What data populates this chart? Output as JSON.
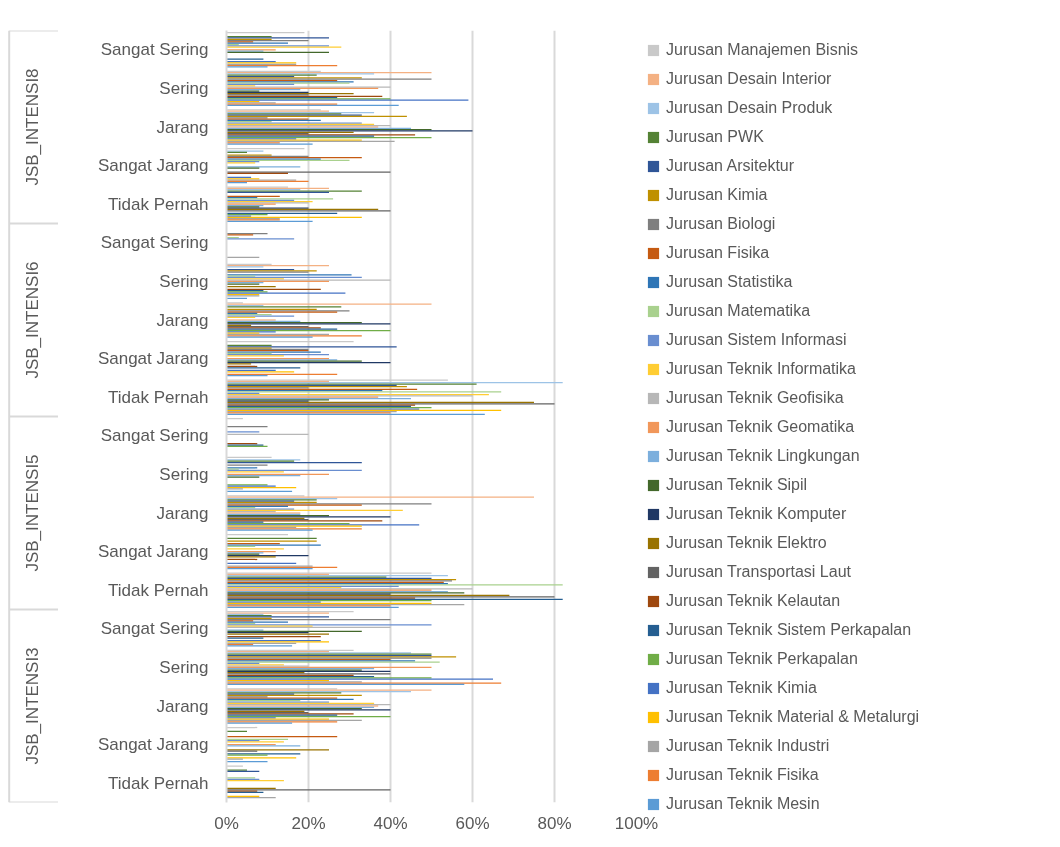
{
  "chart_data": {
    "type": "bar",
    "orientation": "horizontal",
    "legend": "right",
    "grid": "x",
    "categories": [
      "Sangat Sering",
      "Sering",
      "Jarang",
      "Sangat Jarang",
      "Tidak Pernah",
      "Sangat Sering",
      "Sering",
      "Jarang",
      "Sangat Jarang",
      "Tidak Pernah",
      "Sangat Sering",
      "Sering",
      "Jarang",
      "Sangat Jarang",
      "Tidak Pernah",
      "Sangat Sering",
      "Sering",
      "Jarang",
      "Sangat Jarang",
      "Tidak Pernah"
    ],
    "annotations": [
      "JSB_INTENSI8",
      "JSB_INTENSI6",
      "JSB_INTENSI5",
      "JSB_INTENSI3"
    ],
    "xlim": [
      0,
      100
    ],
    "xticks": [
      {
        "value": 0,
        "label": "0%"
      },
      {
        "value": 20,
        "label": "20%"
      },
      {
        "value": 40,
        "label": "40%"
      },
      {
        "value": 60,
        "label": "60%"
      },
      {
        "value": 80,
        "label": "80%"
      },
      {
        "value": 100,
        "label": "100%"
      }
    ],
    "series": [
      {
        "name": "Jurusan Manajemen Bisnis",
        "color": "#c9c9c9",
        "values": [
          19,
          23,
          23,
          19,
          15,
          0,
          11,
          4,
          31,
          54,
          4,
          11,
          19,
          15,
          50,
          31,
          31,
          27,
          7.5,
          4
        ]
      },
      {
        "name": "Jurusan Desain Interior",
        "color": "#f4b183",
        "values": [
          0,
          50,
          25,
          0,
          25,
          0,
          25,
          50,
          0,
          25,
          0,
          0,
          75,
          0,
          25,
          25,
          25,
          50,
          0,
          0
        ]
      },
      {
        "name": "Jurusan Desain Produk",
        "color": "#9dc3e6",
        "values": [
          0,
          36,
          36,
          9,
          18,
          0,
          9,
          9,
          0,
          82,
          0,
          18,
          27,
          0,
          54,
          9,
          45,
          45,
          0,
          0
        ]
      },
      {
        "name": "Jurusan PWK",
        "color": "#548235",
        "values": [
          11,
          22,
          28,
          5,
          33,
          0,
          0,
          28,
          11,
          61,
          0,
          16.5,
          22,
          22,
          39,
          11,
          50,
          28,
          5,
          5
        ]
      },
      {
        "name": "Jurusan Arsitektur",
        "color": "#2f5597",
        "values": [
          25,
          16.5,
          33,
          0,
          25,
          0,
          16.5,
          0,
          41.5,
          41.5,
          0,
          33,
          16.5,
          0,
          50,
          25,
          50,
          16.5,
          0,
          8
        ]
      },
      {
        "name": "Jurusan Kimia",
        "color": "#bf9000",
        "values": [
          11,
          33,
          44,
          11,
          0,
          0,
          22,
          22,
          11,
          44,
          0,
          0,
          22,
          22,
          56,
          11,
          56,
          33,
          0,
          0
        ]
      },
      {
        "name": "Jurusan Biologi",
        "color": "#7f7f7f",
        "values": [
          20,
          50,
          10,
          20,
          0,
          10,
          20,
          30,
          20,
          20,
          10,
          10,
          50,
          0,
          55,
          40,
          50,
          10,
          0,
          0
        ]
      },
      {
        "name": "Jurusan Fisika",
        "color": "#c55a11",
        "values": [
          6.5,
          27,
          20,
          33,
          13,
          6.5,
          0,
          27,
          20,
          46.5,
          0,
          0,
          33,
          13,
          53,
          6.5,
          40,
          27,
          27,
          0
        ]
      },
      {
        "name": "Jurusan Statistika",
        "color": "#2e75b6",
        "values": [
          15,
          31,
          23,
          23,
          7.5,
          0,
          30.5,
          7.5,
          23,
          38,
          0,
          7.5,
          15,
          23,
          54,
          15,
          46,
          31,
          0,
          0
        ]
      },
      {
        "name": "Jurusan Matematika",
        "color": "#a9d18e",
        "values": [
          3,
          30,
          11,
          30,
          26,
          3,
          7,
          11,
          11,
          67,
          0,
          3,
          7,
          7,
          82,
          7,
          52,
          18,
          15,
          7
        ]
      },
      {
        "name": "Jurusan Sistem Informasi",
        "color": "#698ed0",
        "values": [
          25,
          16.5,
          33,
          8,
          16.5,
          16.5,
          33,
          16.5,
          25,
          8,
          8,
          33,
          16.5,
          0,
          42,
          50,
          8,
          25,
          8,
          8
        ]
      },
      {
        "name": "Jurusan Teknik Informatika",
        "color": "#ffcd33",
        "values": [
          28,
          7,
          36,
          7,
          21,
          0,
          14,
          7,
          14,
          64,
          0,
          14,
          43,
          14,
          28,
          21,
          14,
          36,
          14,
          14
        ]
      },
      {
        "name": "Jurusan Teknik Geofisika",
        "color": "#b7b7b7",
        "values": [
          0,
          40,
          40,
          0,
          20,
          0,
          40,
          0,
          0,
          60,
          20,
          0,
          12,
          0,
          60,
          40,
          20,
          40,
          0,
          0
        ]
      },
      {
        "name": "Jurusan Teknik Geomatika",
        "color": "#f1975a",
        "values": [
          12,
          37,
          37,
          0,
          12,
          0,
          25,
          12,
          25,
          37,
          0,
          25,
          18,
          12,
          50,
          0,
          50,
          37,
          12,
          0
        ]
      },
      {
        "name": "Jurusan Teknik Lingkungan",
        "color": "#7cafdd",
        "values": [
          9,
          18,
          45,
          18,
          9,
          0,
          9,
          18,
          27,
          45,
          0,
          18,
          18,
          9,
          54,
          9,
          36,
          36,
          18,
          0
        ]
      },
      {
        "name": "Jurusan Teknik Sipil",
        "color": "#43682b",
        "values": [
          25,
          8,
          50,
          8,
          8,
          0,
          8,
          33,
          33,
          25,
          0,
          8,
          25,
          8,
          58,
          33,
          33,
          33,
          0,
          0
        ]
      },
      {
        "name": "Jurusan Teknik Komputer",
        "color": "#203864",
        "values": [
          0,
          20,
          60,
          0,
          20,
          0,
          0,
          40,
          40,
          20,
          0,
          0,
          40,
          20,
          40,
          20,
          40,
          40,
          0,
          0
        ]
      },
      {
        "name": "Jurusan Teknik Elektro",
        "color": "#997300",
        "values": [
          0,
          31,
          31,
          0,
          37,
          0,
          12,
          6,
          6,
          75,
          0,
          0,
          19,
          12,
          69,
          25,
          19,
          19,
          25,
          12
        ]
      },
      {
        "name": "Jurusan Transportasi Laut",
        "color": "#636363",
        "values": [
          0,
          20,
          20,
          40,
          40,
          0,
          0,
          20,
          0,
          80,
          0,
          0,
          20,
          0,
          80,
          0,
          40,
          20,
          7.5,
          40
        ]
      },
      {
        "name": "Jurusan Teknik Kelautan",
        "color": "#9e480e",
        "values": [
          0,
          38,
          46,
          15,
          0,
          0,
          23,
          23,
          7.5,
          46,
          7.5,
          0,
          38,
          7.5,
          46,
          23,
          31,
          31,
          0,
          7.5
        ]
      },
      {
        "name": "Jurusan Teknik Sistem Perkapalan",
        "color": "#255e91",
        "values": [
          9,
          27,
          36,
          0,
          27,
          0,
          9,
          27,
          18,
          45,
          9,
          0,
          9,
          0,
          82,
          9,
          36,
          27,
          18,
          9
        ]
      },
      {
        "name": "Jurusan Teknik Perkapalan",
        "color": "#70ad47",
        "values": [
          0,
          40,
          50,
          0,
          10,
          0,
          10,
          40,
          0,
          50,
          10,
          10,
          30,
          0,
          50,
          0,
          50,
          40,
          10,
          0
        ]
      },
      {
        "name": "Jurusan Teknik Kimia",
        "color": "#4472c4",
        "values": [
          12,
          59,
          17,
          6,
          6,
          0,
          29,
          12,
          12,
          47,
          0,
          12,
          47,
          17,
          23,
          23,
          65,
          12,
          0,
          0
        ]
      },
      {
        "name": "Jurusan Teknik Material & Metalurgi",
        "color": "#ffc000",
        "values": [
          17,
          8,
          33,
          8,
          33,
          0,
          8,
          8,
          16.5,
          67,
          0,
          17,
          33,
          0,
          50,
          25,
          25,
          25,
          17,
          8
        ]
      },
      {
        "name": "Jurusan Teknik Industri",
        "color": "#a5a5a5",
        "values": [
          17,
          12,
          41,
          17,
          13,
          8,
          8,
          25,
          0,
          41.5,
          0,
          4,
          17,
          21,
          58,
          17,
          33,
          33,
          4,
          12
        ]
      },
      {
        "name": "Jurusan Teknik Fisika",
        "color": "#ed7d31",
        "values": [
          27,
          27,
          13,
          20,
          13,
          0,
          0,
          33,
          27,
          40,
          0,
          0,
          33,
          27,
          40,
          6.5,
          67,
          27,
          0,
          0
        ]
      },
      {
        "name": "Jurusan Teknik Mesin",
        "color": "#5b9bd5",
        "values": [
          10,
          42,
          21,
          5,
          21,
          0,
          5,
          21,
          10,
          63,
          0,
          16,
          21,
          21,
          42,
          16,
          58,
          16,
          10,
          0
        ]
      }
    ]
  }
}
